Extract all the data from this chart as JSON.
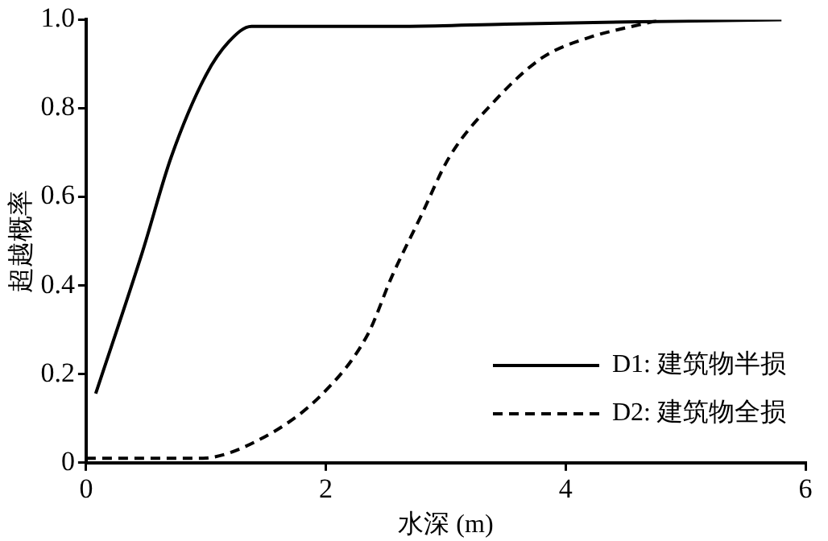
{
  "chart_data": {
    "type": "line",
    "xlabel": "水深 (m)",
    "ylabel": "超越概率",
    "xlim": [
      0,
      6
    ],
    "xticks": [
      0,
      2,
      4,
      6
    ],
    "ylim": [
      0,
      1
    ],
    "yticks": [
      {
        "value": 0,
        "label": "0"
      },
      0.2,
      0.4,
      0.6,
      0.8,
      {
        "value": 1,
        "label": "1.0"
      }
    ],
    "grid": false,
    "legend": "bottom right",
    "marker": "none",
    "series": [
      {
        "name": "D1: 建筑物半损",
        "color": "#000000",
        "line_style": "solid",
        "x": [
          0.08,
          0.47,
          0.71,
          1.0,
          1.19,
          1.38,
          1.6,
          2.7,
          3.5,
          4.5,
          5.8
        ],
        "values": [
          0.156,
          0.476,
          0.69,
          0.875,
          0.95,
          0.985,
          0.985,
          0.985,
          0.99,
          0.995,
          1.0
        ]
      },
      {
        "name": "D2: 建筑物全损",
        "color": "#000000",
        "line_style": "dashed",
        "x": [
          0,
          0.95,
          1.43,
          1.97,
          2.35,
          2.55,
          2.79,
          3.03,
          3.42,
          3.81,
          4.2,
          4.64,
          4.8
        ],
        "values": [
          0.01,
          0.01,
          0.05,
          0.155,
          0.29,
          0.42,
          0.555,
          0.69,
          0.82,
          0.915,
          0.96,
          0.99,
          1.0
        ]
      }
    ]
  }
}
